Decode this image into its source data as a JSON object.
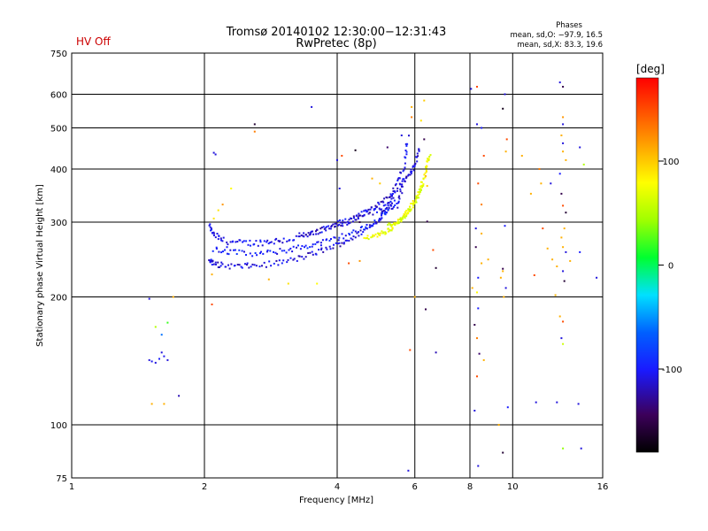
{
  "header": {
    "status": "HV Off",
    "status_color": "#cc0000",
    "title_line1": "Tromsø 20140102 12:30:00−12:31:43",
    "title_line2": "RwPretec (8p)",
    "stats_title": "Phases",
    "stats_o": "mean, sd,O: −97.9, 16.5",
    "stats_x": "mean, sd,X: 83.3, 19.6"
  },
  "chart_data": {
    "type": "scatter",
    "title": "Tromsø 20140102 12:30:00−12:31:43",
    "subtitle": "RwPretec (8p)",
    "xlabel": "Frequency [MHz]",
    "ylabel": "Stationary phase Virtual Height [km]",
    "x_scale": "log",
    "y_scale": "log",
    "xlim": [
      1,
      16
    ],
    "ylim": [
      75,
      750
    ],
    "x_ticks": [
      1,
      2,
      4,
      6,
      8,
      10,
      16
    ],
    "y_ticks": [
      75,
      100,
      200,
      300,
      400,
      500,
      600,
      750
    ],
    "grid": true,
    "colorbar": {
      "label": "[deg]",
      "range": [
        -180,
        180
      ],
      "ticks": [
        100,
        0,
        -100
      ]
    },
    "points": [
      [
        1.5,
        198,
        -110
      ],
      [
        1.5,
        142,
        -110
      ],
      [
        1.52,
        141,
        -105
      ],
      [
        1.55,
        140,
        -110
      ],
      [
        1.58,
        143,
        -100
      ],
      [
        1.6,
        148,
        -110
      ],
      [
        1.62,
        145,
        -105
      ],
      [
        1.65,
        142,
        -110
      ],
      [
        1.6,
        163,
        -60
      ],
      [
        1.55,
        170,
        50
      ],
      [
        1.65,
        174,
        20
      ],
      [
        1.52,
        112,
        110
      ],
      [
        1.62,
        112,
        110
      ],
      [
        1.7,
        200,
        110
      ],
      [
        1.75,
        117,
        -120
      ],
      [
        2.08,
        192,
        150
      ],
      [
        2.08,
        226,
        110
      ],
      [
        2.1,
        437,
        -110
      ],
      [
        2.12,
        433,
        -110
      ],
      [
        2.1,
        306,
        90
      ],
      [
        2.15,
        320,
        90
      ],
      [
        2.2,
        330,
        120
      ],
      [
        2.25,
        262,
        -100
      ],
      [
        2.35,
        258,
        -100
      ],
      [
        2.6,
        510,
        -160
      ],
      [
        2.6,
        490,
        130
      ],
      [
        2.3,
        360,
        80
      ],
      [
        3.5,
        560,
        -110
      ],
      [
        2.8,
        220,
        110
      ],
      [
        3.1,
        215,
        90
      ],
      [
        3.6,
        215,
        80
      ],
      [
        4.4,
        443,
        -170
      ],
      [
        4.1,
        430,
        150
      ],
      [
        4.0,
        420,
        -110
      ],
      [
        4.05,
        360,
        -110
      ],
      [
        5.0,
        370,
        100
      ],
      [
        4.8,
        380,
        110
      ],
      [
        5.9,
        560,
        110
      ],
      [
        5.9,
        530,
        130
      ],
      [
        6.3,
        580,
        100
      ],
      [
        6.2,
        520,
        90
      ],
      [
        6.3,
        470,
        -150
      ],
      [
        5.2,
        450,
        -140
      ],
      [
        5.6,
        480,
        -110
      ],
      [
        5.85,
        150,
        150
      ],
      [
        6.35,
        187,
        -150
      ],
      [
        6.6,
        258,
        150
      ],
      [
        6.7,
        148,
        -120
      ],
      [
        6.7,
        234,
        -160
      ],
      [
        6.4,
        301,
        -150
      ],
      [
        5.8,
        78,
        -110
      ],
      [
        6.0,
        200,
        110
      ],
      [
        4.5,
        300,
        -150
      ],
      [
        4.25,
        240,
        150
      ],
      [
        4.5,
        243,
        120
      ],
      [
        8.05,
        618,
        -110
      ],
      [
        8.3,
        625,
        150
      ],
      [
        8.3,
        510,
        -110
      ],
      [
        8.5,
        500,
        -100
      ],
      [
        8.6,
        430,
        150
      ],
      [
        8.35,
        370,
        150
      ],
      [
        8.5,
        330,
        130
      ],
      [
        8.25,
        290,
        -110
      ],
      [
        8.5,
        282,
        110
      ],
      [
        8.25,
        262,
        -150
      ],
      [
        8.5,
        240,
        110
      ],
      [
        8.35,
        222,
        -100
      ],
      [
        8.1,
        210,
        110
      ],
      [
        8.3,
        205,
        80
      ],
      [
        8.35,
        188,
        -100
      ],
      [
        8.2,
        172,
        -150
      ],
      [
        8.3,
        160,
        130
      ],
      [
        8.4,
        147,
        -140
      ],
      [
        8.6,
        142,
        110
      ],
      [
        8.3,
        130,
        150
      ],
      [
        8.2,
        108,
        -110
      ],
      [
        8.35,
        80,
        -110
      ],
      [
        8.8,
        245,
        110
      ],
      [
        9.5,
        555,
        -170
      ],
      [
        9.6,
        600,
        -110
      ],
      [
        9.7,
        470,
        150
      ],
      [
        9.65,
        440,
        110
      ],
      [
        9.65,
        210,
        -110
      ],
      [
        9.55,
        200,
        110
      ],
      [
        9.5,
        230,
        110
      ],
      [
        9.5,
        233,
        -150
      ],
      [
        9.6,
        294,
        -100
      ],
      [
        9.75,
        110,
        -100
      ],
      [
        9.5,
        86,
        -160
      ],
      [
        9.4,
        222,
        110
      ],
      [
        10.5,
        430,
        110
      ],
      [
        11.0,
        350,
        110
      ],
      [
        11.5,
        400,
        130
      ],
      [
        11.6,
        370,
        110
      ],
      [
        12.2,
        370,
        -110
      ],
      [
        11.7,
        290,
        150
      ],
      [
        12.3,
        245,
        110
      ],
      [
        12.0,
        260,
        110
      ],
      [
        12.5,
        202,
        110
      ],
      [
        11.2,
        225,
        150
      ],
      [
        11.3,
        113,
        -110
      ],
      [
        12.6,
        113,
        -110
      ],
      [
        12.8,
        640,
        -110
      ],
      [
        13.0,
        625,
        -150
      ],
      [
        13.0,
        530,
        120
      ],
      [
        13.0,
        510,
        -110
      ],
      [
        12.9,
        480,
        110
      ],
      [
        13.0,
        460,
        -110
      ],
      [
        13.0,
        440,
        110
      ],
      [
        13.2,
        420,
        110
      ],
      [
        12.8,
        390,
        -100
      ],
      [
        12.9,
        350,
        -150
      ],
      [
        13.0,
        328,
        150
      ],
      [
        13.2,
        316,
        -160
      ],
      [
        13.1,
        290,
        110
      ],
      [
        12.9,
        276,
        110
      ],
      [
        13.0,
        262,
        110
      ],
      [
        13.2,
        255,
        -110
      ],
      [
        12.6,
        236,
        110
      ],
      [
        13.0,
        230,
        -110
      ],
      [
        13.1,
        218,
        -160
      ],
      [
        13.5,
        243,
        110
      ],
      [
        12.8,
        180,
        110
      ],
      [
        13.0,
        175,
        150
      ],
      [
        12.9,
        160,
        -110
      ],
      [
        13.0,
        155,
        60
      ],
      [
        14.2,
        450,
        -110
      ],
      [
        14.5,
        410,
        50
      ],
      [
        14.2,
        255,
        -100
      ],
      [
        15.5,
        222,
        -110
      ],
      [
        13.0,
        88,
        40
      ],
      [
        14.3,
        88,
        -110
      ],
      [
        14.1,
        112,
        -110
      ],
      [
        9.3,
        100,
        110
      ],
      [
        6.35,
        385,
        110
      ],
      [
        6.4,
        365,
        100
      ]
    ],
    "traces": [
      {
        "x": [
          2.05,
          2.1,
          2.2,
          2.4,
          2.6,
          2.8,
          3.0,
          3.3,
          3.6,
          4.0,
          4.3,
          4.6,
          4.9,
          5.2,
          5.5,
          5.6,
          5.7,
          5.8
        ],
        "y": [
          293,
          280,
          272,
          268,
          268,
          270,
          272,
          276,
          283,
          297,
          305,
          314,
          320,
          325,
          330,
          360,
          420,
          480
        ],
        "phase": -105,
        "spread": 0.035
      },
      {
        "x": [
          2.05,
          2.1,
          2.2,
          2.4,
          2.6,
          2.9,
          3.2,
          3.5,
          3.8,
          4.1,
          4.4,
          4.7,
          5.0,
          5.2,
          5.4,
          5.6
        ],
        "y": [
          245,
          240,
          237,
          236,
          237,
          240,
          245,
          252,
          260,
          268,
          278,
          290,
          305,
          330,
          360,
          400
        ],
        "phase": -110,
        "spread": 0.03
      },
      {
        "x": [
          2.1,
          2.3,
          2.6,
          2.9,
          3.2,
          3.5,
          3.8,
          4.2,
          4.6,
          5.0,
          5.2,
          5.4
        ],
        "y": [
          260,
          255,
          252,
          255,
          260,
          265,
          270,
          280,
          290,
          305,
          320,
          345
        ],
        "phase": -100,
        "spread": 0.03
      },
      {
        "x": [
          3.3,
          3.6,
          3.9,
          4.2,
          4.5,
          4.8,
          5.1,
          5.4,
          5.7,
          5.9,
          6.05,
          6.15
        ],
        "y": [
          280,
          285,
          292,
          300,
          310,
          322,
          338,
          355,
          375,
          395,
          420,
          450
        ],
        "phase": -115,
        "spread": 0.03
      },
      {
        "x": [
          4.6,
          4.9,
          5.1,
          5.3,
          5.5,
          5.7,
          5.9,
          6.1,
          6.3,
          6.4,
          6.5
        ],
        "y": [
          275,
          280,
          283,
          290,
          300,
          312,
          328,
          350,
          380,
          410,
          430
        ],
        "phase": 75,
        "spread": 0.025
      },
      {
        "x": [
          5.2,
          5.5,
          5.7,
          5.9,
          6.1,
          6.3
        ],
        "y": [
          295,
          300,
          310,
          322,
          345,
          372
        ],
        "phase": 65,
        "spread": 0.02
      }
    ]
  }
}
